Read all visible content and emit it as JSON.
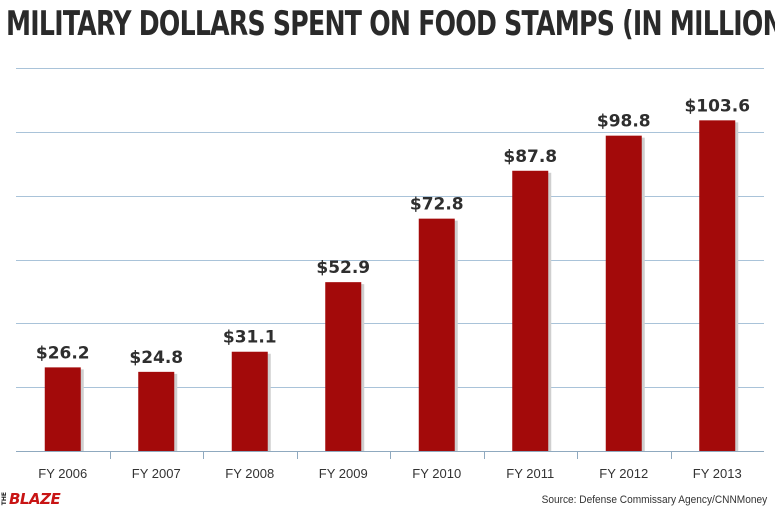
{
  "chart_data": {
    "type": "bar",
    "title": "MILITARY DOLLARS SPENT ON FOOD STAMPS (IN MILLIONS)",
    "categories": [
      "FY 2006",
      "FY 2007",
      "FY 2008",
      "FY 2009",
      "FY 2010",
      "FY 2011",
      "FY 2012",
      "FY 2013"
    ],
    "values": [
      26.2,
      24.8,
      31.1,
      52.9,
      72.8,
      87.8,
      98.8,
      103.6
    ],
    "data_labels": [
      "$26.2",
      "$24.8",
      "$31.1",
      "$52.9",
      "$72.8",
      "$87.8",
      "$98.8",
      "$103.6"
    ],
    "xlabel": "",
    "ylabel": "",
    "ylim": [
      0,
      120
    ],
    "grid": true,
    "bar_color": "#a30a0a",
    "grid_color": "#a9c3d9"
  },
  "footer": {
    "logo_prefix": "THE",
    "logo_text": "BLAZE",
    "source": "Source: Defense Commissary Agency/CNNMoney"
  }
}
